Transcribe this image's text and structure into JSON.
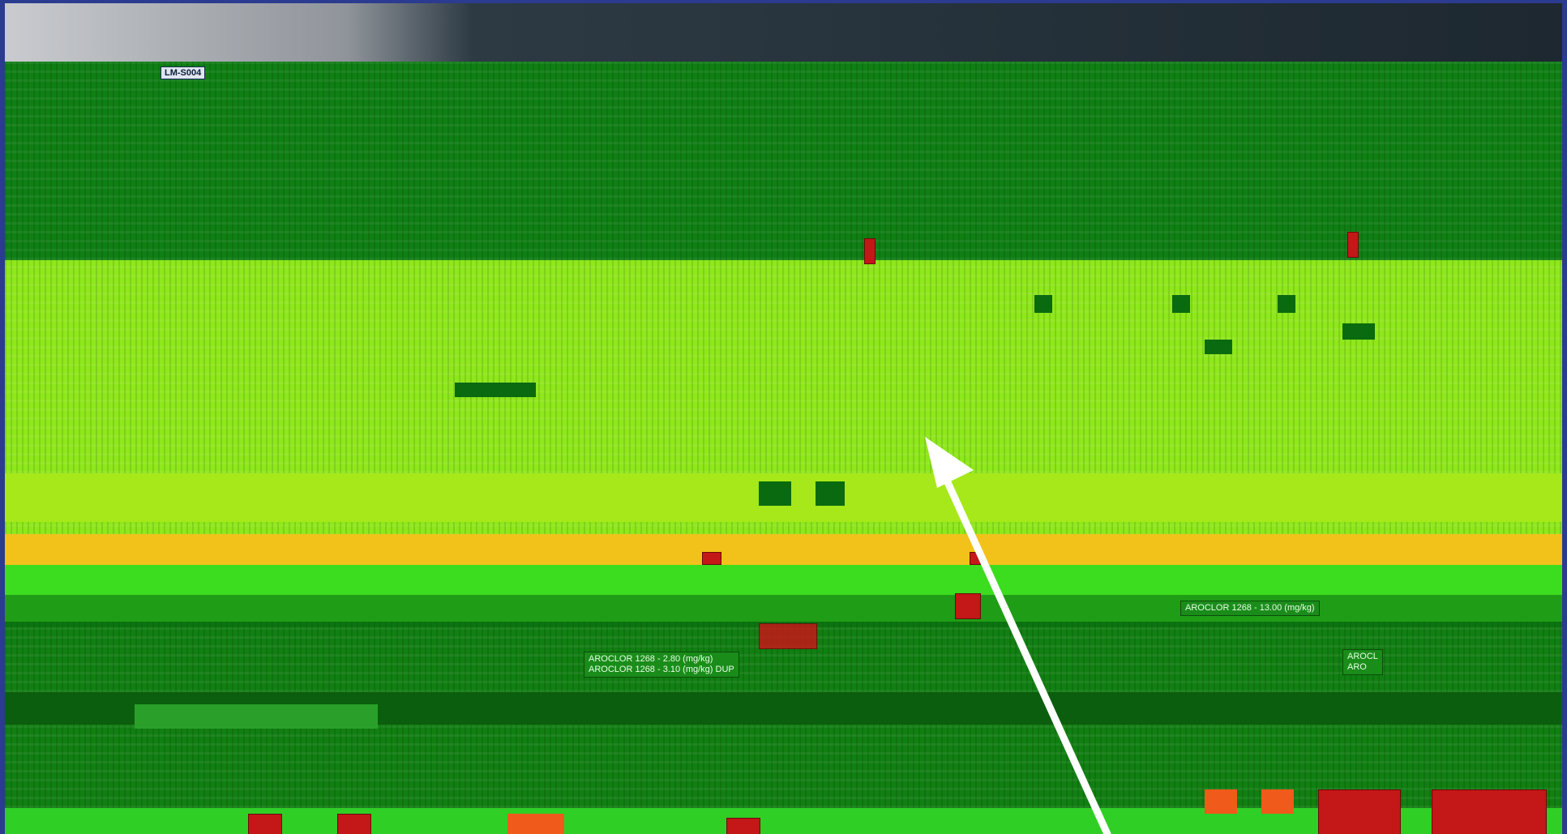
{
  "station_label": "LM-S004",
  "labels": {
    "left_line1": "AROCLOR 1268 - 2.80 (mg/kg)",
    "left_line2": "AROCLOR 1268 - 3.10 (mg/kg) DUP",
    "right_top": "AROCLOR 1268 - 13.00 (mg/kg)",
    "right_mid1": "AROCL",
    "right_mid2": "ARO"
  },
  "colors": {
    "arrow": "#ffffff",
    "map_base": "#0f7f14",
    "highlight_band": "#f2c21a"
  },
  "icons": [
    "arrow-pointer-icon"
  ]
}
